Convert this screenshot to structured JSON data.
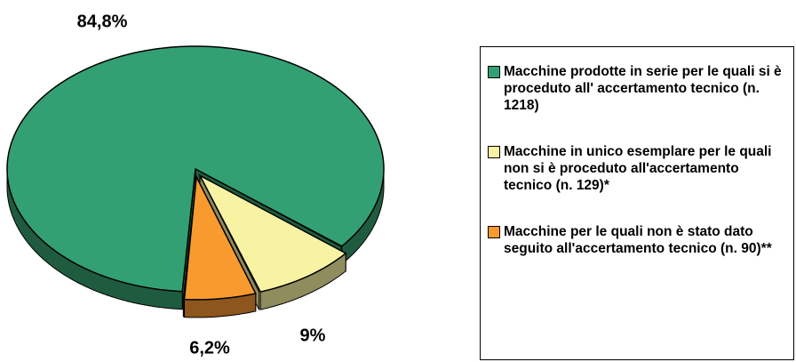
{
  "chart_data": {
    "type": "pie",
    "categories": [
      "Macchine prodotte in serie per le quali si è proceduto all' accertamento tecnico (n. 1218)",
      "Macchine in unico esemplare per le quali non si è proceduto all'accertamento tecnico (n. 129)*",
      "Macchine per le quali non è stato dato seguito all'accertamento tecnico (n. 90)**"
    ],
    "values": [
      84.8,
      9,
      6.2
    ],
    "value_labels": [
      "84,8%",
      "9%",
      "6,2%"
    ],
    "colors": [
      "#33a073",
      "#f7f3a3",
      "#f89a2e"
    ],
    "side_colors": [
      "#1f5c3f",
      "#8f8c5e",
      "#8c561c"
    ]
  }
}
